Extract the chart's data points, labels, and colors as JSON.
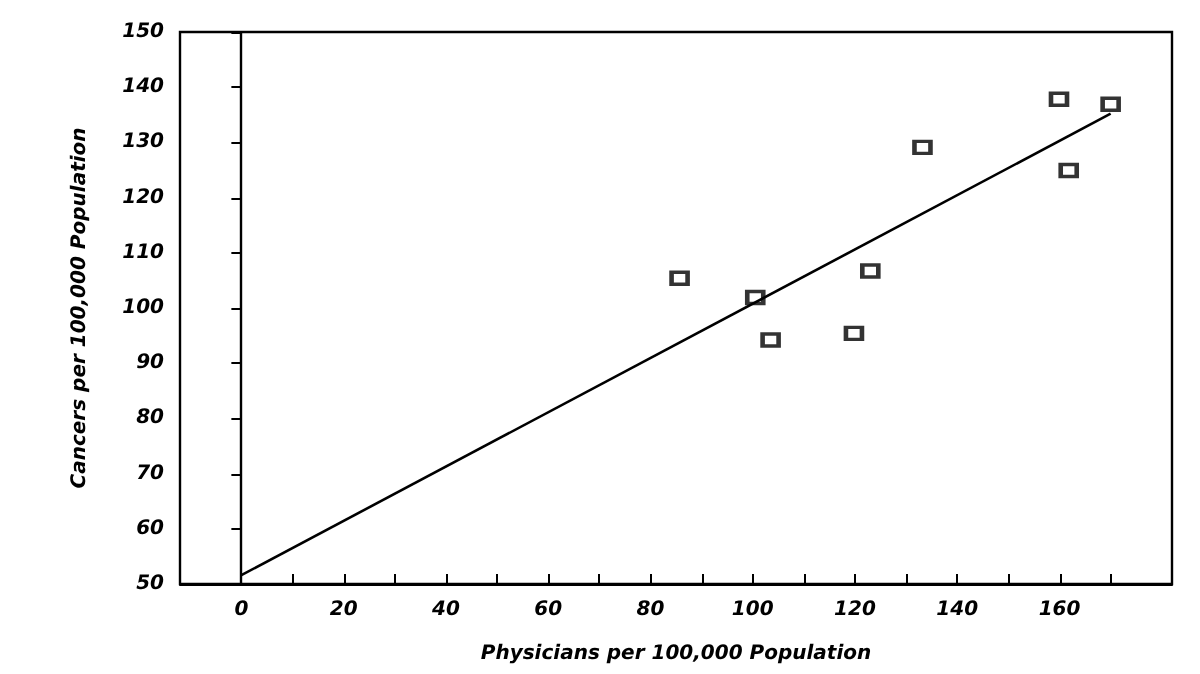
{
  "chart_data": {
    "type": "scatter",
    "xlabel": "Physicians per 100,000 Population",
    "ylabel": "Cancers per 100,000 Population",
    "xlim": [
      -12,
      182
    ],
    "ylim": [
      50,
      150
    ],
    "xticks": [
      0,
      {
        "value": 10,
        "label": null
      },
      20,
      {
        "value": 30,
        "label": null
      },
      40,
      {
        "value": 50,
        "label": null
      },
      60,
      {
        "value": 70,
        "label": null
      },
      80,
      {
        "value": 90,
        "label": null
      },
      100,
      {
        "value": 110,
        "label": null
      },
      120,
      {
        "value": 130,
        "label": null
      },
      140,
      {
        "value": 150,
        "label": null
      },
      160,
      {
        "value": 170,
        "label": null
      }
    ],
    "yticks": [
      50,
      60,
      70,
      80,
      90,
      100,
      110,
      120,
      130,
      140,
      150
    ],
    "grid": false,
    "marker": "square",
    "series": [
      {
        "color": "#000000",
        "x": [
          85.7,
          100.5,
          103.5,
          119.8,
          123,
          133.2,
          159.9,
          161.8,
          170
        ],
        "values": [
          105.4,
          101.9,
          94.2,
          95.4,
          106.7,
          129.1,
          137.8,
          124.9,
          136.9
        ]
      },
      {
        "type": "line",
        "color": "#000000",
        "marker": "none",
        "x": [
          0,
          170
        ],
        "values": [
          51.6,
          135.2
        ]
      }
    ],
    "ref_lines": [
      {
        "axis": "x",
        "value": 0,
        "color": "#000000"
      }
    ]
  }
}
